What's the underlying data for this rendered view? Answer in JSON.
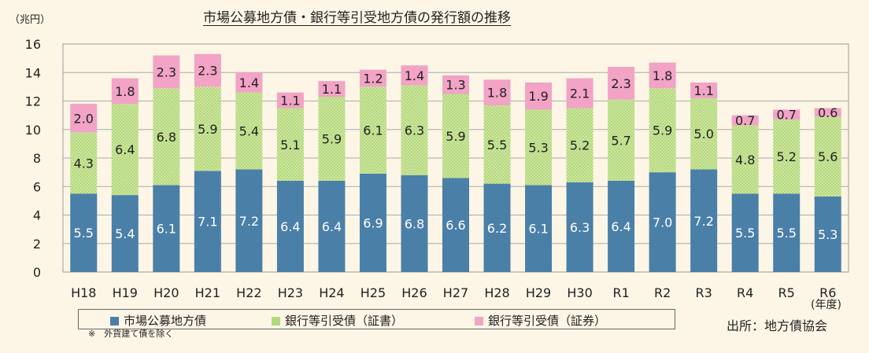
{
  "chart_data": {
    "type": "bar",
    "stacked": true,
    "title": "市場公募地方債・銀行等引受地方債の発行額の推移",
    "ylabel": "（兆円）",
    "xunit": "(年度)",
    "ylim": [
      0,
      16
    ],
    "yticks": [
      0,
      2,
      4,
      6,
      8,
      10,
      12,
      14,
      16
    ],
    "grid": true,
    "legend_position": "bottom",
    "categories": [
      "H18",
      "H19",
      "H20",
      "H21",
      "H22",
      "H23",
      "H24",
      "H25",
      "H26",
      "H27",
      "H28",
      "H29",
      "H30",
      "R1",
      "R2",
      "R3",
      "R4",
      "R5",
      "R6"
    ],
    "series": [
      {
        "name": "市場公募地方債",
        "color": "#4a7fa8",
        "values": [
          5.5,
          5.4,
          6.1,
          7.1,
          7.2,
          6.4,
          6.4,
          6.9,
          6.8,
          6.6,
          6.2,
          6.1,
          6.3,
          6.4,
          7.0,
          7.2,
          5.5,
          5.5,
          5.3
        ]
      },
      {
        "name": "銀行等引受債（証書）",
        "color": "#b5d97a",
        "values": [
          4.3,
          6.4,
          6.8,
          5.9,
          5.4,
          5.1,
          5.9,
          6.1,
          6.3,
          5.9,
          5.5,
          5.3,
          5.2,
          5.7,
          5.9,
          5.0,
          4.8,
          5.2,
          5.6
        ]
      },
      {
        "name": "銀行等引受債（証券）",
        "color": "#f2a3c6",
        "values": [
          2.0,
          1.8,
          2.3,
          2.3,
          1.4,
          1.1,
          1.1,
          1.2,
          1.4,
          1.3,
          1.8,
          1.9,
          2.1,
          2.3,
          1.8,
          1.1,
          0.7,
          0.7,
          0.6
        ]
      }
    ]
  },
  "note": "※　外貨建て債を除く",
  "source": "出所：地方債協会"
}
